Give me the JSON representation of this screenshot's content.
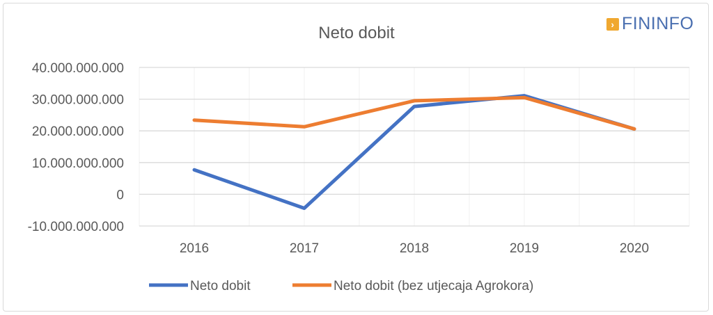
{
  "logo": {
    "text": "FININFO",
    "icon": "arrow-right-icon",
    "color": "#4a6fb0",
    "icon_color": "#f0a830"
  },
  "chart_data": {
    "type": "line",
    "title": "Neto dobit",
    "categories": [
      "2016",
      "2017",
      "2018",
      "2019",
      "2020"
    ],
    "ylim": [
      -10000000000,
      40000000000
    ],
    "yticks": [
      -10000000000,
      0,
      10000000000,
      20000000000,
      30000000000,
      40000000000
    ],
    "ytick_labels": [
      "-10.000.000.000",
      "0",
      "10.000.000.000",
      "20.000.000.000",
      "30.000.000.000",
      "40.000.000.000"
    ],
    "grid": true,
    "legend_position": "bottom",
    "series": [
      {
        "name": "Neto dobit",
        "color": "#4472c4",
        "values": [
          7700000000,
          -4400000000,
          27700000000,
          31100000000,
          20600000000
        ]
      },
      {
        "name": "Neto dobit (bez utjecaja Agrokora)",
        "color": "#ed7d31",
        "values": [
          23400000000,
          21300000000,
          29500000000,
          30500000000,
          20600000000
        ]
      }
    ]
  }
}
